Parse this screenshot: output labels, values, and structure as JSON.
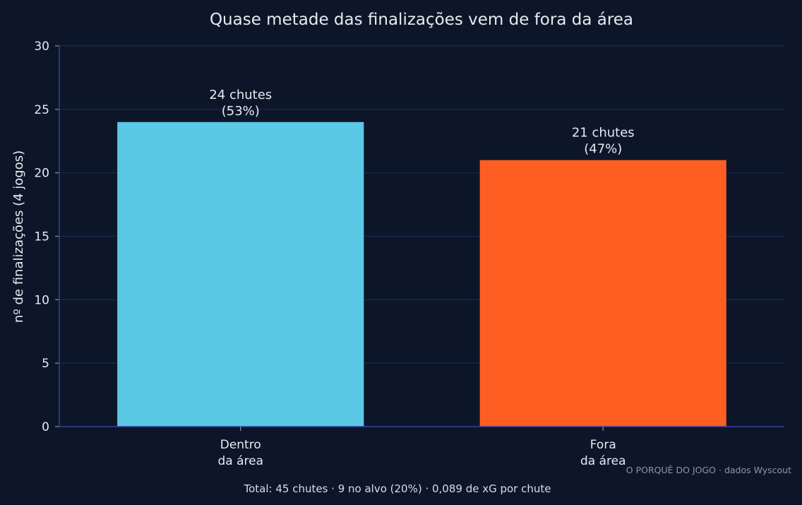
{
  "chart_data": {
    "type": "bar",
    "title": "Quase metade das finalizações vem de fora da área",
    "ylabel": "nº de finalizações (4 jogos)",
    "xlabel": "",
    "categories": [
      [
        "Dentro",
        "da área"
      ],
      [
        "Fora",
        "da área"
      ]
    ],
    "values": [
      24,
      21
    ],
    "bar_labels": [
      [
        "24 chutes",
        "(53%)"
      ],
      [
        "21 chutes",
        "(47%)"
      ]
    ],
    "colors": [
      "#5bc8e6",
      "#ff5e22"
    ],
    "ylim": [
      0,
      30
    ],
    "yticks": [
      0,
      5,
      10,
      15,
      20,
      25,
      30
    ],
    "grid": true,
    "footer": "Total: 45 chutes · 9 no alvo (20%) · 0,089 de xG por chute",
    "credit": "O PORQUÊ DO JOGO · dados Wyscout"
  }
}
